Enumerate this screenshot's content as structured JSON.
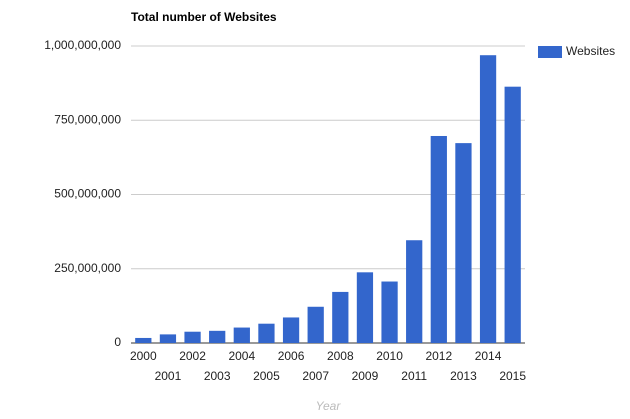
{
  "chart_data": {
    "type": "bar",
    "title": "Total number of Websites",
    "x_label": "Year",
    "categories": [
      "2000",
      "2001",
      "2002",
      "2003",
      "2004",
      "2005",
      "2006",
      "2007",
      "2008",
      "2009",
      "2010",
      "2011",
      "2012",
      "2013",
      "2014",
      "2015"
    ],
    "series": [
      {
        "name": "Websites",
        "color": "#3366cc",
        "values": [
          17000000,
          29000000,
          38000000,
          41000000,
          52000000,
          65000000,
          86000000,
          122000000,
          172000000,
          238000000,
          207000000,
          346000000,
          697000000,
          673000000,
          969000000,
          863000000
        ]
      }
    ],
    "ylim": [
      0,
      1000000000
    ],
    "yticks": [
      0,
      {
        "value": 250000000,
        "label": "250,000,000"
      },
      {
        "value": 500000000,
        "label": "500,000,000"
      },
      {
        "value": 750000000,
        "label": "750,000,000"
      },
      {
        "value": 1000000000,
        "label": "1,000,000,000"
      }
    ],
    "grid": true,
    "legend": "right"
  }
}
